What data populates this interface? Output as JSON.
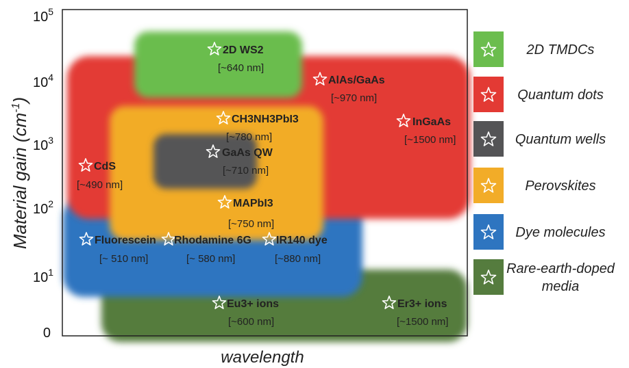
{
  "chart_data": {
    "type": "region",
    "xlabel": "wavelength",
    "ylabel": "Material gain (cm",
    "ylabel_sup": "-1",
    "ylabel_close": ")",
    "y_scale": "log",
    "y_ticks": [
      {
        "label": "0"
      },
      {
        "label": "10",
        "sup": "1"
      },
      {
        "label": "10",
        "sup": "2"
      },
      {
        "label": "10",
        "sup": "3"
      },
      {
        "label": "10",
        "sup": "4"
      },
      {
        "label": "10",
        "sup": "5"
      }
    ],
    "groups": [
      {
        "key": "rare",
        "legend": [
          "Rare-earth-doped",
          "media"
        ],
        "color": "#557c3e",
        "gain_range": [
          3,
          60
        ]
      },
      {
        "key": "dye",
        "legend": [
          "Dye molecules"
        ],
        "color": "#2e75c0",
        "gain_range": [
          8,
          200
        ]
      },
      {
        "key": "qd",
        "legend": [
          "Quantum dots"
        ],
        "color": "#e33a34",
        "gain_range": [
          150,
          15000
        ]
      },
      {
        "key": "perov",
        "legend": [
          "Perovskites"
        ],
        "color": "#f2ac28",
        "gain_range": [
          30,
          3000
        ]
      },
      {
        "key": "tmdc",
        "legend": [
          "2D TMDCs"
        ],
        "color": "#6bbd4e",
        "gain_range": [
          6000,
          50000
        ]
      },
      {
        "key": "qw",
        "legend": [
          "Quantum wells"
        ],
        "color": "#545456",
        "gain_range": [
          300,
          1000
        ]
      }
    ],
    "points": [
      {
        "name": "2D WS2",
        "wavelength": "[~640 nm]",
        "group": "tmdc"
      },
      {
        "name": "AlAs/GaAs",
        "wavelength": "[~970 nm]",
        "group": "qd"
      },
      {
        "name": "InGaAs",
        "wavelength": "[~1500 nm]",
        "group": "qd"
      },
      {
        "name": "CdS",
        "wavelength": "[~490 nm]",
        "group": "qd"
      },
      {
        "name": "CH3NH3PbI3",
        "wavelength": "[~780 nm]",
        "group": "perov"
      },
      {
        "name": "GaAs QW",
        "wavelength": "[~710 nm]",
        "group": "qw"
      },
      {
        "name": "MAPbI3",
        "wavelength": "[~750 nm]",
        "group": "perov"
      },
      {
        "name": "Fluorescein",
        "wavelength": "[~ 510 nm]",
        "group": "dye"
      },
      {
        "name": "Rhodamine 6G",
        "wavelength": "[~ 580 nm]",
        "group": "dye"
      },
      {
        "name": "IR140 dye",
        "wavelength": "[~880 nm]",
        "group": "dye"
      },
      {
        "name": "Eu3+ ions",
        "wavelength": "[~600 nm]",
        "group": "rare"
      },
      {
        "name": "Er3+ ions",
        "wavelength": "[~1500 nm]",
        "group": "rare"
      }
    ],
    "legend_order": [
      "tmdc",
      "qd",
      "qw",
      "perov",
      "dye",
      "rare"
    ]
  }
}
